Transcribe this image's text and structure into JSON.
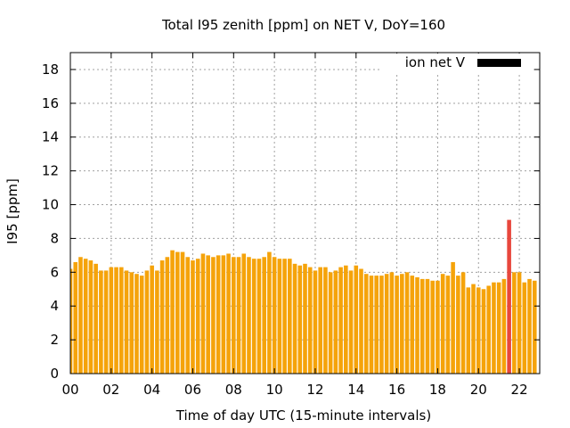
{
  "chart_data": {
    "type": "bar",
    "title": "Total I95 zenith [ppm] on NET V, DoY=160",
    "xlabel": "Time of day UTC (15-minute intervals)",
    "ylabel": "I95 [ppm]",
    "xlim": [
      0,
      23
    ],
    "ylim": [
      0,
      19
    ],
    "x_ticks": [
      0,
      2,
      4,
      6,
      8,
      10,
      12,
      14,
      16,
      18,
      20,
      22
    ],
    "x_tick_labels": [
      "00",
      "02",
      "04",
      "06",
      "08",
      "10",
      "12",
      "14",
      "16",
      "18",
      "20",
      "22"
    ],
    "y_ticks": [
      0,
      2,
      4,
      6,
      8,
      10,
      12,
      14,
      16,
      18
    ],
    "y_tick_labels": [
      "0",
      "2",
      "4",
      "6",
      "8",
      "10",
      "12",
      "14",
      "16",
      "18"
    ],
    "grid": true,
    "legend_position": "top-right",
    "legend": [
      {
        "label": "ion net V",
        "color": "#000000"
      }
    ],
    "bar_interval_hours": 0.25,
    "series": [
      {
        "color": "#f5a30a",
        "highlight_color": "#e8473d",
        "highlight_index": 86,
        "values": [
          6.2,
          6.6,
          6.9,
          6.8,
          6.7,
          6.5,
          6.1,
          6.1,
          6.3,
          6.3,
          6.3,
          6.1,
          6.0,
          5.9,
          5.8,
          6.1,
          6.4,
          6.1,
          6.7,
          6.9,
          7.3,
          7.2,
          7.2,
          6.9,
          6.7,
          6.8,
          7.1,
          7.0,
          6.9,
          7.0,
          7.0,
          7.1,
          6.9,
          6.9,
          7.1,
          6.9,
          6.8,
          6.8,
          6.9,
          7.2,
          6.9,
          6.8,
          6.8,
          6.8,
          6.5,
          6.4,
          6.5,
          6.3,
          6.1,
          6.3,
          6.3,
          6.0,
          6.1,
          6.3,
          6.4,
          6.1,
          6.4,
          6.2,
          5.9,
          5.8,
          5.8,
          5.8,
          5.9,
          6.0,
          5.8,
          5.9,
          6.0,
          5.8,
          5.7,
          5.6,
          5.6,
          5.5,
          5.5,
          5.9,
          5.8,
          6.6,
          5.8,
          6.0,
          5.1,
          5.3,
          5.1,
          5.0,
          5.2,
          5.4,
          5.4,
          5.6,
          9.1,
          6.0,
          6.0,
          5.4,
          5.6,
          5.5
        ]
      }
    ]
  }
}
